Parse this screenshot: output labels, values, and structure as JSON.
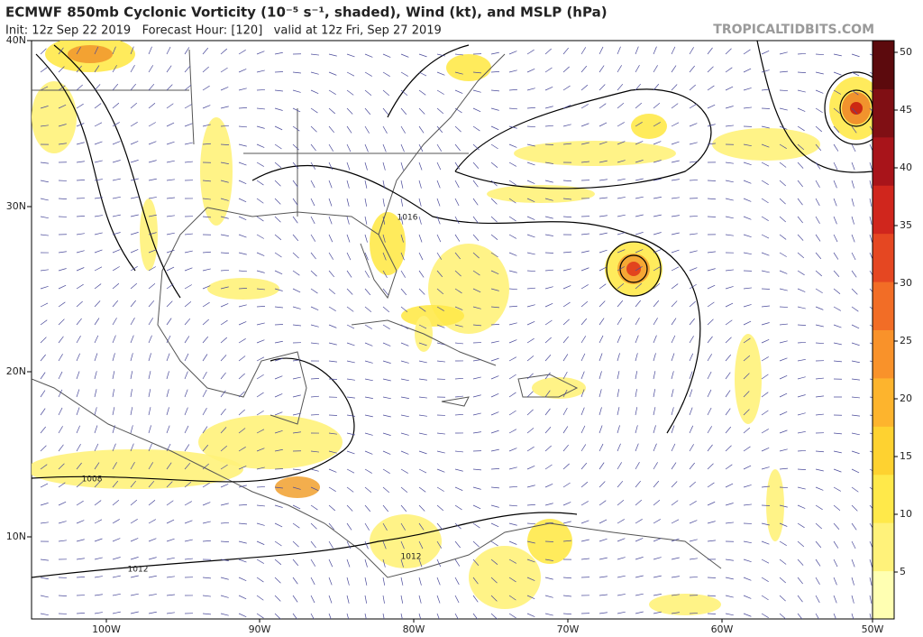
{
  "header": {
    "title": "ECMWF 850mb Cyclonic Vorticity (10⁻⁵ s⁻¹, shaded), Wind (kt), and MSLP (hPa)",
    "init": "Init: 12z Sep 22 2019   Forecast Hour: [120]   valid at 12z Fri, Sep 27 2019",
    "site": "TROPICALTIDBITS.COM"
  },
  "lat_labels": [
    "40N",
    "30N",
    "20N",
    "10N"
  ],
  "lon_labels": [
    "100W",
    "90W",
    "80W",
    "70W",
    "60W",
    "50W"
  ],
  "colorbar": {
    "ticks": [
      5,
      10,
      15,
      20,
      25,
      30,
      35,
      40,
      45,
      50
    ]
  },
  "isobar_labels": [
    "1016",
    "1008",
    "1012",
    "1012"
  ]
}
